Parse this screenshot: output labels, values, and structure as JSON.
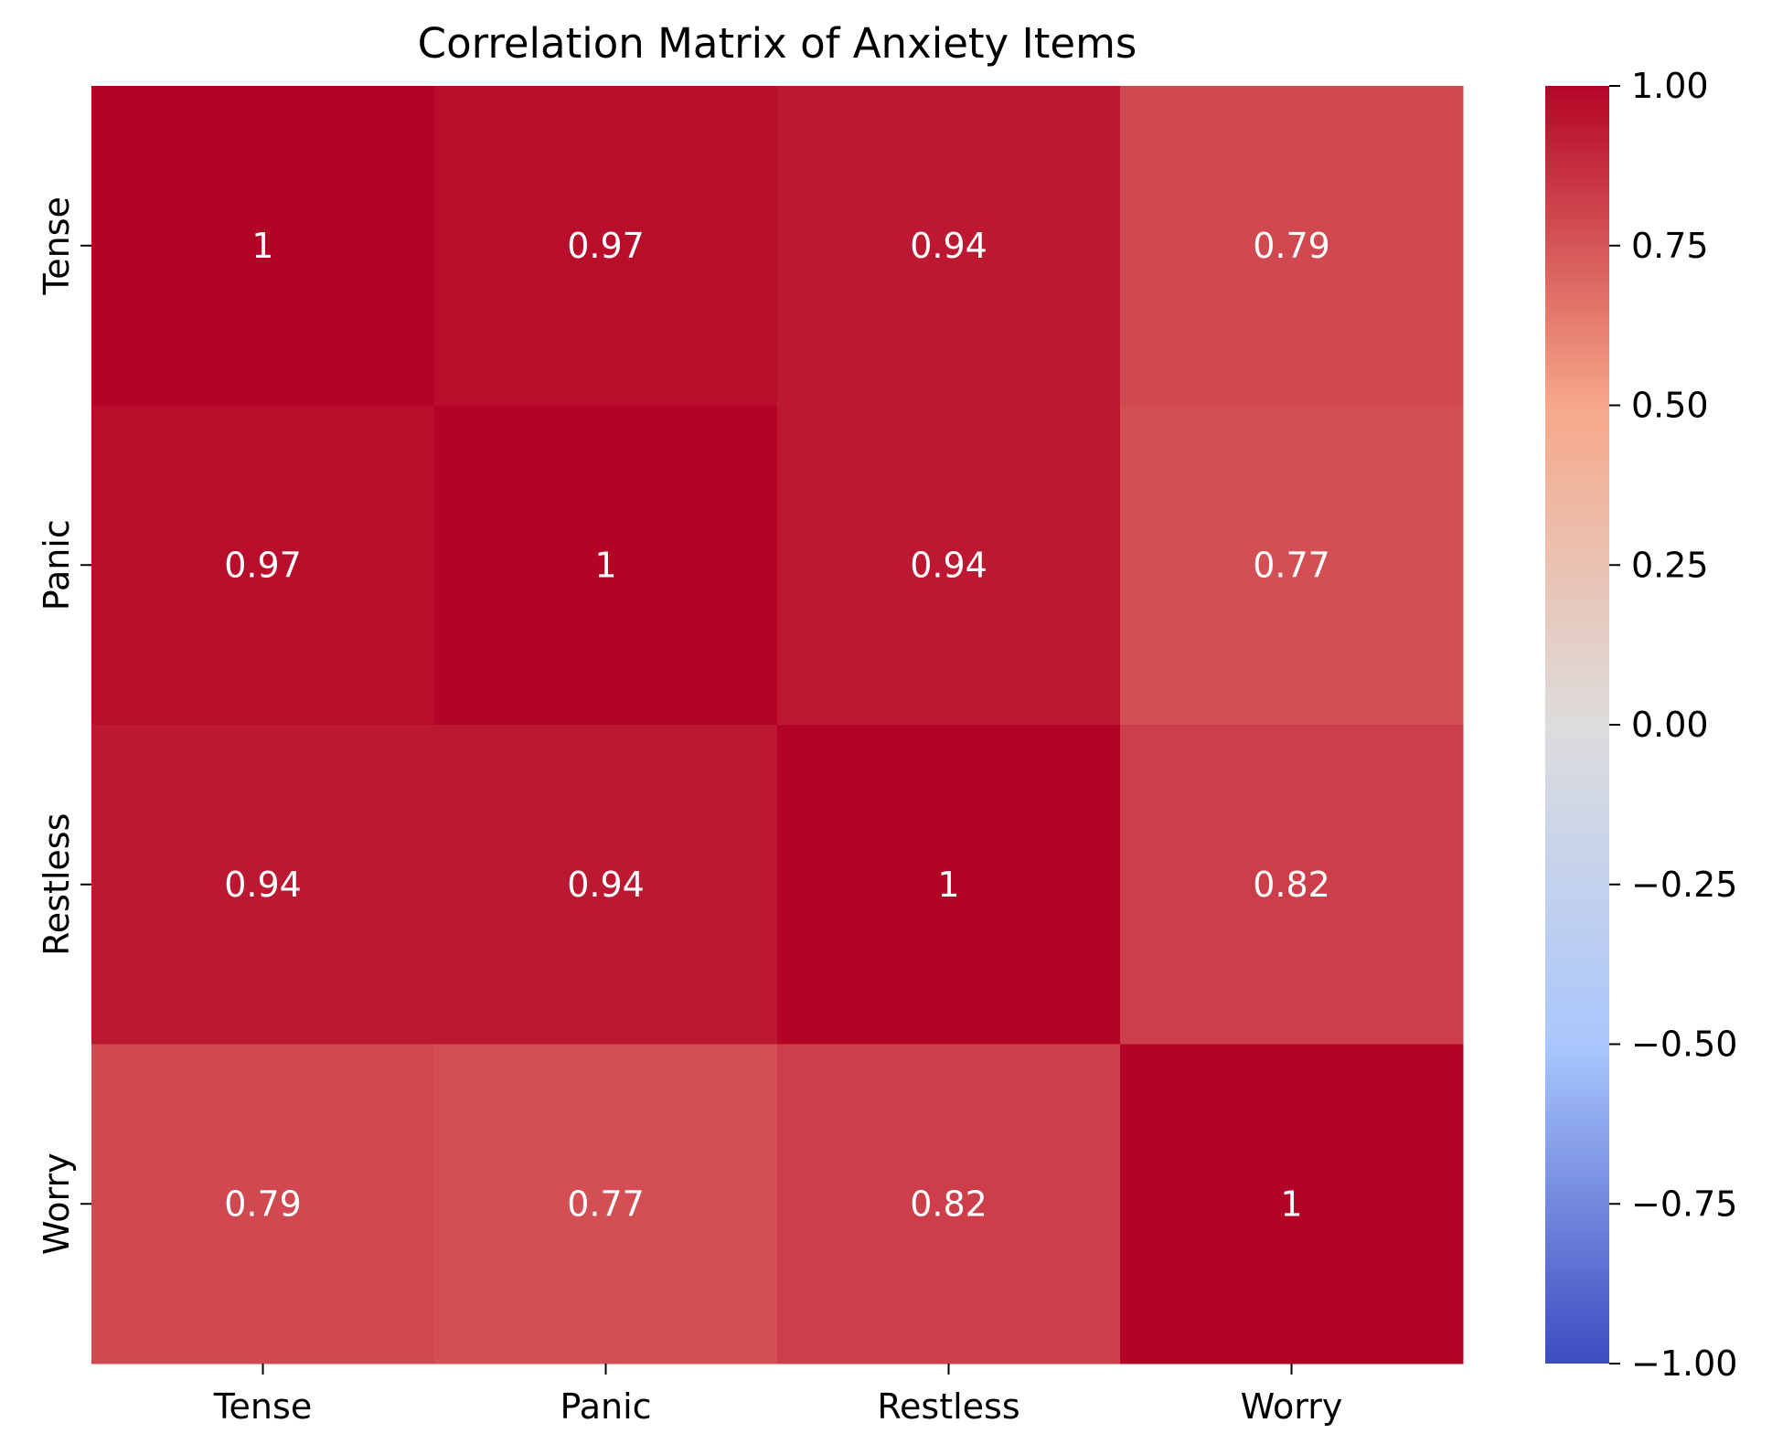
{
  "chart_data": {
    "type": "heatmap",
    "title": "Correlation Matrix of Anxiety Items",
    "xlabel": "",
    "ylabel": "",
    "x_categories": [
      "Tense",
      "Panic",
      "Restless",
      "Worry"
    ],
    "y_categories": [
      "Tense",
      "Panic",
      "Restless",
      "Worry"
    ],
    "values": [
      [
        1.0,
        0.97,
        0.94,
        0.79
      ],
      [
        0.97,
        1.0,
        0.94,
        0.77
      ],
      [
        0.94,
        0.94,
        1.0,
        0.82
      ],
      [
        0.79,
        0.77,
        0.82,
        1.0
      ]
    ],
    "annotations": [
      [
        "1",
        "0.97",
        "0.94",
        "0.79"
      ],
      [
        "0.97",
        "1",
        "0.94",
        "0.77"
      ],
      [
        "0.94",
        "0.94",
        "1",
        "0.82"
      ],
      [
        "0.79",
        "0.77",
        "0.82",
        "1"
      ]
    ],
    "colormap": "coolwarm",
    "vmin": -1.0,
    "vmax": 1.0,
    "colorbar_ticks": [
      1.0,
      0.75,
      0.5,
      0.25,
      0.0,
      -0.25,
      -0.5,
      -0.75,
      -1.0
    ],
    "colorbar_tick_labels": [
      "1.00",
      "0.75",
      "0.50",
      "0.25",
      "0.00",
      "−0.25",
      "−0.50",
      "−0.75",
      "−1.00"
    ],
    "colorbar_colors": [
      "#3b4cc0",
      "#aac7fd",
      "#dddcdc",
      "#f7a889",
      "#b40426"
    ],
    "annotation_color": "#ffffff",
    "grid": false,
    "legend": "colorbar-right"
  }
}
